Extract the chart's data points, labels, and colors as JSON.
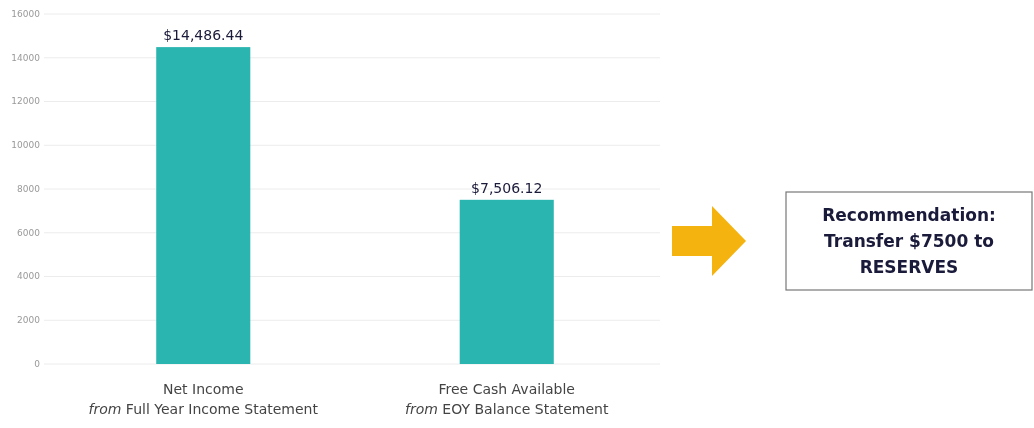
{
  "chart_data": {
    "type": "bar",
    "categories": [
      "Net Income\nfrom Full Year Income Statement",
      "Free Cash Available\nfrom EOY Balance Statement"
    ],
    "values": [
      14486.44,
      7506.12
    ],
    "color": "#2bb5b1",
    "value_labels": [
      "$14,486.44",
      "$7,506.12"
    ],
    "ylim": [
      0,
      16000
    ],
    "yticks": [
      0,
      2000,
      4000,
      6000,
      8000,
      10000,
      12000,
      14000,
      16000
    ],
    "grid": "y",
    "annotations": [
      "Recommendation:\nTransfer $7500 to\nRESERVES"
    ]
  }
}
